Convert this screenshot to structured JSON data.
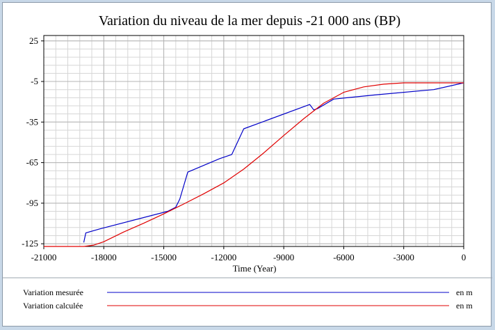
{
  "chart_data": {
    "type": "line",
    "title": "Variation du niveau de la mer depuis -21 000 ans (BP)",
    "xlabel": "Time (Year)",
    "ylabel": "",
    "xlim": [
      -21000,
      0
    ],
    "ylim": [
      -127,
      29
    ],
    "x_ticks": [
      -21000,
      -18000,
      -15000,
      -12000,
      -9000,
      -6000,
      -3000,
      0
    ],
    "x_tick_labels": [
      "-21000",
      "-18000",
      "-15000",
      "-12000",
      "-9000",
      "-6000",
      "-3000",
      "0"
    ],
    "y_ticks": [
      25,
      -5,
      -35,
      -65,
      -95,
      -125
    ],
    "y_tick_labels": [
      "25",
      "-5",
      "-35",
      "-65",
      "-95",
      "-125"
    ],
    "grid": true,
    "legend_position": "bottom",
    "series": [
      {
        "name": "Variation mesurée",
        "unit": "en m",
        "color": "#0000c8",
        "points": [
          [
            -19000,
            -124
          ],
          [
            -18900,
            -117
          ],
          [
            -18200,
            -114
          ],
          [
            -14800,
            -101
          ],
          [
            -14400,
            -98
          ],
          [
            -14200,
            -92
          ],
          [
            -13800,
            -72
          ],
          [
            -12200,
            -62
          ],
          [
            -11600,
            -59
          ],
          [
            -11000,
            -40
          ],
          [
            -7700,
            -22
          ],
          [
            -7500,
            -26
          ],
          [
            -7300,
            -25
          ],
          [
            -6500,
            -18
          ],
          [
            -4500,
            -15
          ],
          [
            -1500,
            -11
          ],
          [
            0,
            -6
          ]
        ]
      },
      {
        "name": "Variation calculée",
        "unit": "en m",
        "color": "#e00000",
        "points": [
          [
            -21000,
            -127
          ],
          [
            -19000,
            -127
          ],
          [
            -18500,
            -126
          ],
          [
            -18000,
            -123.5
          ],
          [
            -17000,
            -116.3
          ],
          [
            -16000,
            -109.8
          ],
          [
            -15000,
            -102.9
          ],
          [
            -14000,
            -95.6
          ],
          [
            -13000,
            -88
          ],
          [
            -12000,
            -80
          ],
          [
            -11000,
            -69.8
          ],
          [
            -10000,
            -57.8
          ],
          [
            -9000,
            -45
          ],
          [
            -8000,
            -32.5
          ],
          [
            -7000,
            -21
          ],
          [
            -6000,
            -13
          ],
          [
            -5000,
            -9
          ],
          [
            -4000,
            -7
          ],
          [
            -3000,
            -6
          ],
          [
            -2000,
            -6
          ],
          [
            -1000,
            -6
          ],
          [
            0,
            -6
          ]
        ]
      }
    ]
  }
}
